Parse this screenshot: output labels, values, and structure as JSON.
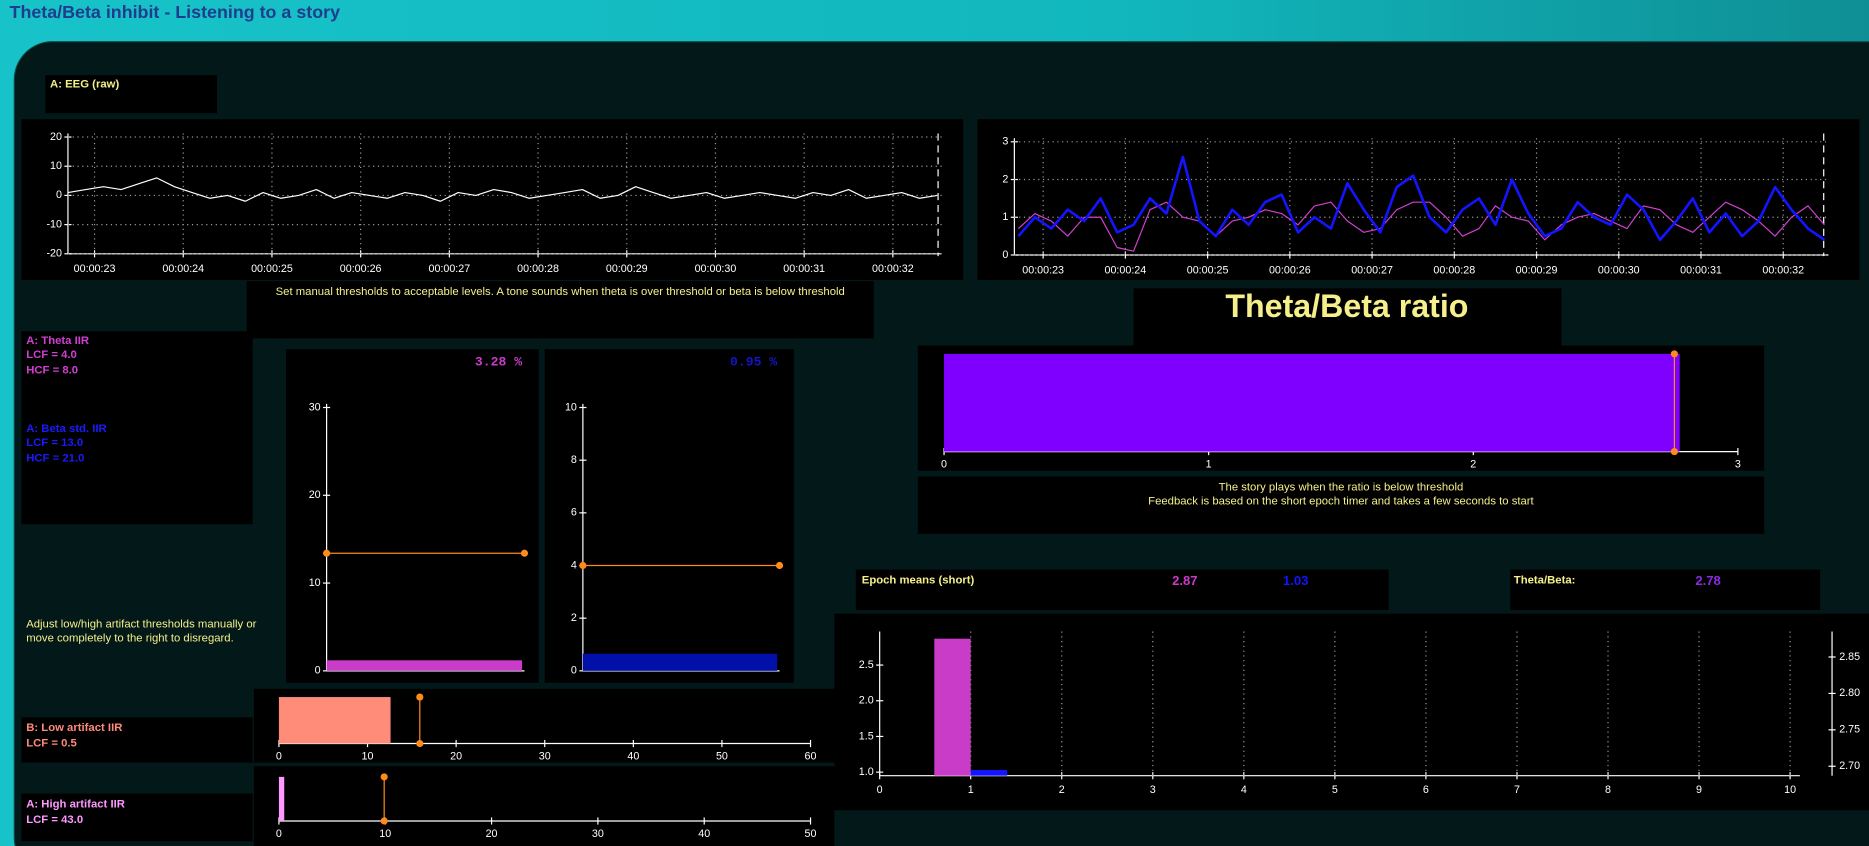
{
  "title": "Theta/Beta inhibit - Listening to a story",
  "eeg_label": "A: EEG (raw)",
  "instructions": "Set manual thresholds to acceptable levels. A tone sounds when theta is over threshold or beta is below threshold",
  "theta_filter": [
    "A: Theta IIR",
    "LCF = 4.0",
    "HCF = 8.0"
  ],
  "beta_filter": [
    "A: Beta std. IIR",
    "LCF = 13.0",
    "HCF = 21.0"
  ],
  "artifact_note": [
    "Adjust low/high artifact thresholds manually or",
    "move completely to the right to disregard."
  ],
  "low_artifact_filter": [
    "B: Low artifact IIR",
    "LCF = 0.5"
  ],
  "high_artifact_filter": [
    "A: High artifact IIR",
    "LCF = 43.0"
  ],
  "ratio_title": "Theta/Beta ratio",
  "ratio_notes": [
    "The story plays when the ratio is below threshold",
    "Feedback is based on the short epoch timer and takes a few seconds to start"
  ],
  "epoch_label": "Epoch means (short)",
  "epoch_ratio_label": "Theta/Beta:",
  "charts": {
    "eeg": {
      "type": "line",
      "grid": true,
      "x": [
        22.7,
        22.9,
        23.1,
        23.3,
        23.5,
        23.7,
        23.9,
        24.1,
        24.3,
        24.5,
        24.7,
        24.9,
        25.1,
        25.3,
        25.5,
        25.7,
        25.9,
        26.1,
        26.3,
        26.5,
        26.7,
        26.9,
        27.1,
        27.3,
        27.5,
        27.7,
        27.9,
        28.1,
        28.3,
        28.5,
        28.7,
        28.9,
        29.1,
        29.3,
        29.5,
        29.7,
        29.9,
        30.1,
        30.3,
        30.5,
        30.7,
        30.9,
        31.1,
        31.3,
        31.5,
        31.7,
        31.9,
        32.1,
        32.3,
        32.5
      ],
      "series": [
        {
          "color": "#ffffff",
          "values": [
            1,
            2,
            3,
            2,
            4,
            6,
            3,
            1,
            -1,
            0,
            -2,
            1,
            -1,
            0,
            2,
            -1,
            1,
            0,
            -1,
            1,
            0,
            -2,
            1,
            0,
            2,
            1,
            -1,
            0,
            1,
            2,
            -1,
            0,
            3,
            1,
            -1,
            0,
            1,
            -1,
            0,
            1,
            0,
            -1,
            1,
            0,
            2,
            -1,
            0,
            1,
            -1,
            0
          ]
        }
      ],
      "xlim": [
        22.7,
        32.55
      ],
      "ylim": [
        -20,
        20
      ],
      "yticks": [
        20,
        10,
        0,
        -10,
        -20
      ],
      "xticks": [
        {
          "value": 23,
          "label": "00:00:23"
        },
        {
          "value": 24,
          "label": "00:00:24"
        },
        {
          "value": 25,
          "label": "00:00:25"
        },
        {
          "value": 26,
          "label": "00:00:26"
        },
        {
          "value": 27,
          "label": "00:00:27"
        },
        {
          "value": 28,
          "label": "00:00:28"
        },
        {
          "value": 29,
          "label": "00:00:29"
        },
        {
          "value": 30,
          "label": "00:00:30"
        },
        {
          "value": 31,
          "label": "00:00:31"
        },
        {
          "value": 32,
          "label": "00:00:32"
        }
      ]
    },
    "ratio_trace": {
      "type": "line",
      "grid": true,
      "x": [
        22.7,
        22.9,
        23.1,
        23.3,
        23.5,
        23.7,
        23.9,
        24.1,
        24.3,
        24.5,
        24.7,
        24.9,
        25.1,
        25.3,
        25.5,
        25.7,
        25.9,
        26.1,
        26.3,
        26.5,
        26.7,
        26.9,
        27.1,
        27.3,
        27.5,
        27.7,
        27.9,
        28.1,
        28.3,
        28.5,
        28.7,
        28.9,
        29.1,
        29.3,
        29.5,
        29.7,
        29.9,
        30.1,
        30.3,
        30.5,
        30.7,
        30.9,
        31.1,
        31.3,
        31.5,
        31.7,
        31.9,
        32.1,
        32.3,
        32.5
      ],
      "series": [
        {
          "color": "#d040d0",
          "values": [
            0.7,
            1.1,
            0.9,
            0.5,
            1.0,
            1.0,
            0.2,
            0.1,
            1.2,
            1.4,
            1.0,
            0.9,
            0.5,
            0.9,
            1.0,
            1.2,
            1.1,
            0.8,
            1.3,
            1.4,
            0.9,
            0.6,
            0.7,
            1.2,
            1.4,
            1.4,
            1.0,
            0.5,
            0.7,
            1.3,
            1.0,
            0.9,
            0.4,
            0.8,
            1.0,
            1.1,
            0.9,
            0.7,
            1.3,
            1.2,
            0.8,
            0.6,
            1.0,
            1.4,
            1.2,
            0.9,
            0.5,
            1.0,
            1.3,
            0.8
          ]
        },
        {
          "color": "#1414ff",
          "values": [
            0.5,
            1.0,
            0.7,
            1.2,
            0.9,
            1.5,
            0.6,
            0.8,
            1.5,
            1.1,
            2.6,
            0.9,
            0.5,
            1.2,
            0.8,
            1.4,
            1.6,
            0.6,
            1.0,
            0.7,
            1.9,
            1.2,
            0.6,
            1.8,
            2.1,
            1.0,
            0.6,
            1.2,
            1.5,
            0.8,
            2.0,
            1.1,
            0.5,
            0.7,
            1.4,
            1.0,
            0.8,
            1.6,
            1.2,
            0.4,
            0.9,
            1.5,
            0.6,
            1.1,
            0.5,
            0.9,
            1.8,
            1.2,
            0.7,
            0.4
          ]
        }
      ],
      "xlim": [
        22.65,
        32.55
      ],
      "ylim": [
        0,
        3
      ],
      "yticks": [
        3,
        2,
        1,
        0
      ],
      "xticks": [
        {
          "value": 23,
          "label": "00:00:23"
        },
        {
          "value": 24,
          "label": "00:00:24"
        },
        {
          "value": 25,
          "label": "00:00:25"
        },
        {
          "value": 26,
          "label": "00:00:26"
        },
        {
          "value": 27,
          "label": "00:00:27"
        },
        {
          "value": 28,
          "label": "00:00:28"
        },
        {
          "value": 29,
          "label": "00:00:29"
        },
        {
          "value": 30,
          "label": "00:00:30"
        },
        {
          "value": 31,
          "label": "00:00:31"
        },
        {
          "value": 32,
          "label": "00:00:32"
        }
      ]
    },
    "theta_power": {
      "type": "vbar",
      "readout": "3.28 %",
      "color": "#c83cc8",
      "readout_color": "#c83cc8",
      "value": 1.2,
      "threshold": 13.4,
      "threshold_color": "#ff8c1a",
      "ylim": [
        0,
        30
      ],
      "yticks": [
        0,
        10,
        20,
        30
      ]
    },
    "beta_power": {
      "type": "vbar",
      "readout": "0.95 %",
      "color": "#0010a8",
      "readout_color": "#1414c8",
      "value": 0.65,
      "threshold": 4,
      "threshold_color": "#ff8c1a",
      "ylim": [
        0,
        10
      ],
      "yticks": [
        0,
        2,
        4,
        6,
        8,
        10
      ]
    },
    "ratio_bar": {
      "type": "hbar",
      "color": "#7f00ff",
      "value": 2.78,
      "threshold": 2.76,
      "threshold_color": "#ff8c1a",
      "xlim": [
        0,
        3
      ],
      "xticks": [
        0,
        1,
        2,
        3
      ]
    },
    "low_artifact": {
      "type": "hbar",
      "color": "#ff8c78",
      "value": 12.6,
      "threshold": 15.9,
      "threshold_color": "#ff8c1a",
      "xlim": [
        0,
        60
      ],
      "xticks": [
        0,
        10,
        20,
        30,
        40,
        50,
        60
      ]
    },
    "high_artifact": {
      "type": "hbar",
      "color": "#ff99ff",
      "value": 0.5,
      "threshold": 9.9,
      "threshold_color": "#ff8c1a",
      "xlim": [
        0,
        50
      ],
      "xticks": [
        0,
        10,
        20,
        30,
        40,
        50
      ]
    },
    "epoch": {
      "type": "epoch",
      "grid": true,
      "series": [
        {
          "color": "#c83cc8",
          "x": [
            1
          ],
          "values": [
            2.87
          ]
        },
        {
          "color": "#1414ff",
          "x": [
            1
          ],
          "values": [
            1.03
          ]
        }
      ],
      "xlim": [
        0,
        10.5
      ],
      "xticks": [
        0,
        1,
        2,
        3,
        4,
        5,
        6,
        7,
        8,
        9,
        10
      ],
      "ylim": [
        0.95,
        2.97
      ],
      "yticks": [
        {
          "value": 1,
          "label": "1.0"
        },
        1.5,
        {
          "value": 2,
          "label": "2.0"
        },
        2.5
      ],
      "y2lim": [
        2.687,
        2.885
      ],
      "y2ticks": [
        {
          "value": 2.7,
          "label": "2.70"
        },
        2.75,
        {
          "value": 2.8,
          "label": "2.80"
        },
        2.85
      ]
    }
  },
  "epoch_ratio_color": "#8a2be2"
}
